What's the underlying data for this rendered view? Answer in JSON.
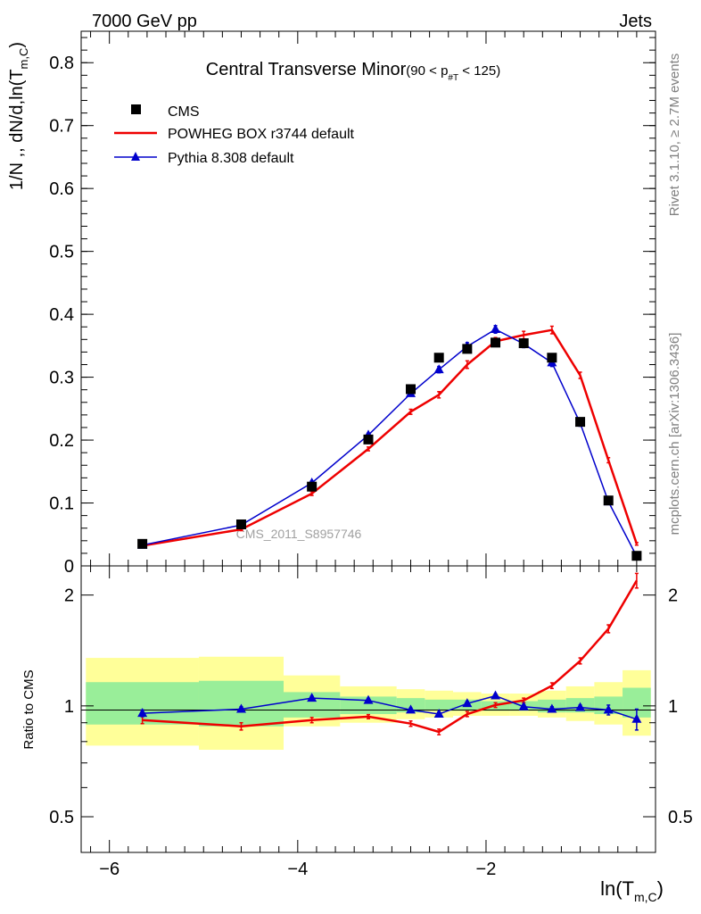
{
  "header": {
    "left": "7000 GeV pp",
    "right": "Jets"
  },
  "side_labels": {
    "rivet": "Rivet 3.1.10, ≥ 2.7M events",
    "mcplots": "mcplots.cern.ch [arXiv:1306.3436]"
  },
  "watermark": "CMS_2011_S8957746",
  "colors": {
    "data": "#000000",
    "powheg": "#ee0000",
    "pythia": "#0000cc",
    "band_green": "#99ee99",
    "band_yellow": "#ffff99"
  },
  "chart_data": [
    {
      "type": "scatter",
      "panel": "main",
      "title": "Central Transverse Minor",
      "title_cut_parts": {
        "open": "(90 < p",
        "sub": "#T",
        "close": " < 125)"
      },
      "ylabel": "1/N ,, dN/d,ln(T",
      "ylabel_sub": "m,C",
      "ylabel_close": ")",
      "xlim": [
        -6.3,
        -0.2
      ],
      "ylim": [
        0,
        0.85
      ],
      "yticks": [
        0,
        0.1,
        0.2,
        0.3,
        0.4,
        0.5,
        0.6,
        0.7,
        0.8
      ],
      "ytick_labels": [
        "0",
        "0.1",
        "0.2",
        "0.3",
        "0.4",
        "0.5",
        "0.6",
        "0.7",
        "0.8"
      ],
      "legend": {
        "placement": "top-left",
        "entries": [
          "CMS",
          "POWHEG BOX r3744 default",
          "Pythia 8.308 default"
        ]
      },
      "x": [
        -5.65,
        -4.6,
        -3.85,
        -3.25,
        -2.8,
        -2.5,
        -2.2,
        -1.9,
        -1.6,
        -1.3,
        -1.0,
        -0.7,
        -0.4
      ],
      "series": [
        {
          "name": "CMS",
          "values": [
            0.035,
            0.066,
            0.126,
            0.201,
            0.281,
            0.331,
            0.345,
            0.355,
            0.354,
            0.331,
            0.229,
            0.104,
            0.016
          ]
        },
        {
          "name": "POWHEG BOX r3744 default",
          "values": [
            0.032,
            0.058,
            0.115,
            0.186,
            0.245,
            0.272,
            0.32,
            0.357,
            0.367,
            0.375,
            0.303,
            0.168,
            0.035
          ],
          "errors": [
            0.002,
            0.002,
            0.003,
            0.003,
            0.004,
            0.005,
            0.006,
            0.006,
            0.006,
            0.006,
            0.005,
            0.004,
            0.002
          ]
        },
        {
          "name": "Pythia 8.308 default",
          "values": [
            0.033,
            0.065,
            0.132,
            0.208,
            0.274,
            0.312,
            0.349,
            0.376,
            0.353,
            0.323,
            0.227,
            0.102,
            0.015
          ],
          "errors": [
            0.002,
            0.002,
            0.003,
            0.003,
            0.004,
            0.005,
            0.006,
            0.006,
            0.006,
            0.006,
            0.005,
            0.004,
            0.002
          ]
        }
      ]
    },
    {
      "type": "line",
      "panel": "ratio",
      "ylabel": "Ratio to CMS",
      "xlabel": "ln(T",
      "xlabel_sub": "m,C",
      "xlabel_close": ")",
      "xlim": [
        -6.3,
        -0.2
      ],
      "ylim": [
        0.4,
        2.4
      ],
      "yscale": "log",
      "yticks": [
        0.5,
        1,
        2
      ],
      "ytick_labels": [
        "0.5",
        "1",
        "2"
      ],
      "xticks": [
        -6,
        -4,
        -2
      ],
      "xtick_labels": [
        "−6",
        "−4",
        "−2"
      ],
      "bins": [
        {
          "lo": -6.25,
          "hi": -5.05,
          "g": [
            0.89,
            1.16
          ],
          "y": [
            0.78,
            1.35
          ]
        },
        {
          "lo": -5.05,
          "hi": -4.15,
          "g": [
            0.88,
            1.17
          ],
          "y": [
            0.76,
            1.36
          ]
        },
        {
          "lo": -4.15,
          "hi": -3.55,
          "g": [
            0.93,
            1.09
          ],
          "y": [
            0.88,
            1.21
          ]
        },
        {
          "lo": -3.55,
          "hi": -2.95,
          "g": [
            0.95,
            1.06
          ],
          "y": [
            0.9,
            1.13
          ]
        },
        {
          "lo": -2.95,
          "hi": -2.65,
          "g": [
            0.96,
            1.05
          ],
          "y": [
            0.92,
            1.11
          ]
        },
        {
          "lo": -2.65,
          "hi": -2.35,
          "g": [
            0.97,
            1.04
          ],
          "y": [
            0.93,
            1.1
          ]
        },
        {
          "lo": -2.35,
          "hi": -2.05,
          "g": [
            0.97,
            1.04
          ],
          "y": [
            0.94,
            1.09
          ]
        },
        {
          "lo": -2.05,
          "hi": -1.75,
          "g": [
            0.97,
            1.03
          ],
          "y": [
            0.94,
            1.08
          ]
        },
        {
          "lo": -1.75,
          "hi": -1.45,
          "g": [
            0.97,
            1.03
          ],
          "y": [
            0.94,
            1.08
          ]
        },
        {
          "lo": -1.45,
          "hi": -1.15,
          "g": [
            0.96,
            1.04
          ],
          "y": [
            0.93,
            1.1
          ]
        },
        {
          "lo": -1.15,
          "hi": -0.85,
          "g": [
            0.96,
            1.05
          ],
          "y": [
            0.91,
            1.13
          ]
        },
        {
          "lo": -0.85,
          "hi": -0.55,
          "g": [
            0.95,
            1.06
          ],
          "y": [
            0.89,
            1.16
          ]
        },
        {
          "lo": -0.55,
          "hi": -0.25,
          "g": [
            0.93,
            1.12
          ],
          "y": [
            0.83,
            1.25
          ]
        }
      ],
      "x": [
        -5.65,
        -4.6,
        -3.85,
        -3.25,
        -2.8,
        -2.5,
        -2.2,
        -1.9,
        -1.6,
        -1.3,
        -1.0,
        -0.7,
        -0.4
      ],
      "series": [
        {
          "name": "POWHEG BOX r3744 default",
          "values": [
            0.915,
            0.88,
            0.915,
            0.935,
            0.895,
            0.85,
            0.95,
            1.005,
            1.035,
            1.135,
            1.325,
            1.62,
            2.19
          ],
          "errors": [
            0.02,
            0.02,
            0.015,
            0.012,
            0.015,
            0.015,
            0.015,
            0.015,
            0.015,
            0.02,
            0.025,
            0.04,
            0.1
          ]
        },
        {
          "name": "Pythia 8.308 default",
          "values": [
            0.955,
            0.98,
            1.05,
            1.035,
            0.975,
            0.95,
            1.015,
            1.065,
            0.995,
            0.98,
            0.99,
            0.975,
            0.92
          ],
          "errors": [
            0.02,
            0.015,
            0.012,
            0.012,
            0.012,
            0.012,
            0.012,
            0.012,
            0.012,
            0.015,
            0.015,
            0.03,
            0.06
          ]
        }
      ]
    }
  ]
}
